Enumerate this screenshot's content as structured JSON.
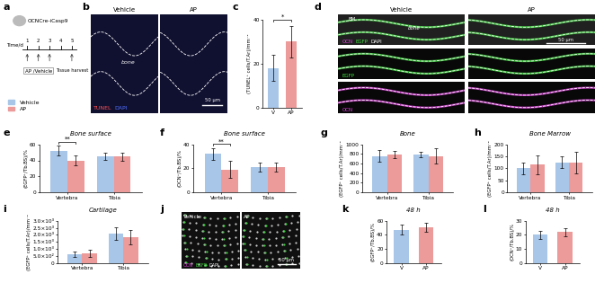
{
  "schematic": {
    "panel": "a",
    "mouse": "OCNCre-iCasp9",
    "axis_label": "Time/d",
    "days": [
      1,
      2,
      3,
      4,
      5
    ],
    "treatment": "AP /Vehicle",
    "treatment_days": [
      1,
      2,
      3
    ],
    "harvest": "Tissue harvest",
    "harvest_day": 5
  },
  "images": [
    {
      "panel": "b",
      "columns": [
        "Vehicle",
        "AP"
      ],
      "rows": [
        [
          {
            "text": "TUNEL",
            "color": "#ff5050"
          },
          {
            "text": "DAPI",
            "color": "#5070ff"
          }
        ]
      ],
      "regions": [
        "bone"
      ],
      "scale_bar": "50 μm"
    },
    {
      "panel": "d",
      "columns": [
        "Vehicle",
        "AP"
      ],
      "rows": [
        [
          {
            "text": "OCN",
            "color": "#e040e0"
          },
          {
            "text": "EGFP",
            "color": "#40e040"
          },
          {
            "text": "DAPI",
            "color": "#ffffff"
          }
        ],
        [
          {
            "text": "EGFP",
            "color": "#40e040"
          }
        ],
        [
          {
            "text": "OCN",
            "color": "#e040e0"
          }
        ]
      ],
      "regions": [
        "BM",
        "bone"
      ],
      "scale_bar": "50 μm"
    },
    {
      "panel": "j",
      "columns": [
        "Vehicle",
        "AP"
      ],
      "rows": [
        [
          {
            "text": "OCN",
            "color": "#e040e0"
          },
          {
            "text": "EGFP",
            "color": "#40e040"
          },
          {
            "text": "DAPI",
            "color": "#ffffff"
          }
        ]
      ],
      "regions": [],
      "scale_bar": "50 μm"
    }
  ],
  "chart_data": [
    {
      "panel": "c",
      "type": "bar",
      "categories": [
        "V",
        "AP"
      ],
      "values": [
        18,
        30
      ],
      "errors": [
        6,
        7
      ],
      "colors": [
        "#a8c6e8",
        "#ec9a9a"
      ],
      "y_label": "(TUNEL⁺ cells/T.Ar)/mm⁻²",
      "ylim": [
        0,
        40
      ],
      "yticks": [
        0,
        20,
        40
      ],
      "significance": [
        {
          "text": "*"
        }
      ]
    },
    {
      "panel": "e",
      "type": "grouped_bar",
      "title": "Bone surface",
      "categories": [
        "Vertebra",
        "Tibia"
      ],
      "series": [
        {
          "name": "Vehicle",
          "color": "#a8c6e8",
          "values": [
            52,
            45
          ],
          "errors": [
            6,
            4
          ]
        },
        {
          "name": "AP",
          "color": "#ec9a9a",
          "values": [
            40,
            45
          ],
          "errors": [
            6,
            5
          ]
        }
      ],
      "y_label": "(EGFP⁺/Tb.BS)/%",
      "ylim": [
        0,
        60
      ],
      "yticks": [
        0,
        20,
        40,
        60
      ],
      "significance": [
        {
          "text": "**",
          "category": "Vertebra"
        }
      ]
    },
    {
      "panel": "f",
      "type": "grouped_bar",
      "title": "Bone surface",
      "categories": [
        "Vertebra",
        "Tibia"
      ],
      "series": [
        {
          "name": "Vehicle",
          "color": "#a8c6e8",
          "values": [
            32,
            21
          ],
          "errors": [
            5,
            4
          ]
        },
        {
          "name": "AP",
          "color": "#ec9a9a",
          "values": [
            19,
            21
          ],
          "errors": [
            7,
            4
          ]
        }
      ],
      "y_label": "(OCN⁺/Tb.BS)/%",
      "ylim": [
        0,
        40
      ],
      "yticks": [
        0,
        20,
        40
      ],
      "significance": [
        {
          "text": "**",
          "category": "Vertebra"
        }
      ]
    },
    {
      "panel": "g",
      "type": "grouped_bar",
      "title": "Bone",
      "categories": [
        "Vertebra",
        "Tibia"
      ],
      "series": [
        {
          "name": "Vehicle",
          "color": "#a8c6e8",
          "values": [
            760,
            790
          ],
          "errors": [
            120,
            60
          ]
        },
        {
          "name": "AP",
          "color": "#ec9a9a",
          "values": [
            790,
            760
          ],
          "errors": [
            70,
            150
          ]
        }
      ],
      "y_label": "(EGFP⁺ cells/T.Ar)/mm⁻²",
      "ylim": [
        0,
        1000
      ],
      "yticks": [
        0,
        200,
        400,
        600,
        800,
        1000
      ]
    },
    {
      "panel": "h",
      "type": "grouped_bar",
      "title": "Bone Marrow",
      "categories": [
        "Vertebra",
        "Tibia"
      ],
      "series": [
        {
          "name": "Vehicle",
          "color": "#a8c6e8",
          "values": [
            100,
            125
          ],
          "errors": [
            25,
            25
          ]
        },
        {
          "name": "AP",
          "color": "#ec9a9a",
          "values": [
            115,
            125
          ],
          "errors": [
            40,
            45
          ]
        }
      ],
      "y_label": "(EGFP⁺ cells/T.Ar)/mm⁻²",
      "ylim": [
        0,
        200
      ],
      "yticks": [
        0,
        50,
        100,
        150,
        200
      ]
    },
    {
      "panel": "i",
      "type": "grouped_bar",
      "title": "Cartilage",
      "categories": [
        "Vertebra",
        "Tibia"
      ],
      "series": [
        {
          "name": "Vehicle",
          "color": "#a8c6e8",
          "values": [
            650,
            2100
          ],
          "errors": [
            200,
            450
          ]
        },
        {
          "name": "AP",
          "color": "#ec9a9a",
          "values": [
            700,
            1850
          ],
          "errors": [
            250,
            500
          ]
        }
      ],
      "y_label": "(EGFP⁺ cells/T.Ar)/mm⁻²",
      "ylim": [
        0,
        3000
      ],
      "yticks": [
        0,
        {
          "value": 500,
          "label": "5.0×10²"
        },
        {
          "value": 1000,
          "label": "1.0×10³"
        },
        {
          "value": 1500,
          "label": "1.5×10³"
        },
        {
          "value": 2000,
          "label": "2.0×10³"
        },
        {
          "value": 2500,
          "label": "2.5×10³"
        },
        {
          "value": 3000,
          "label": "3.0×10³"
        }
      ]
    },
    {
      "panel": "k",
      "type": "bar",
      "title": "48 h",
      "categories": [
        "V",
        "AP"
      ],
      "values": [
        47,
        51
      ],
      "errors": [
        7,
        6
      ],
      "colors": [
        "#a8c6e8",
        "#ec9a9a"
      ],
      "y_label": "(EGFP⁺/Tb.BS)/%",
      "ylim": [
        0,
        60
      ],
      "yticks": [
        0,
        20,
        40,
        60
      ]
    },
    {
      "panel": "l",
      "type": "bar",
      "title": "48 h",
      "categories": [
        "V",
        "AP"
      ],
      "values": [
        20,
        22
      ],
      "errors": [
        3,
        3
      ],
      "colors": [
        "#a8c6e8",
        "#ec9a9a"
      ],
      "y_label": "(OCN⁺/Tb.BS)/%",
      "ylim": [
        0,
        30
      ],
      "yticks": [
        0,
        10,
        20,
        30
      ]
    }
  ]
}
